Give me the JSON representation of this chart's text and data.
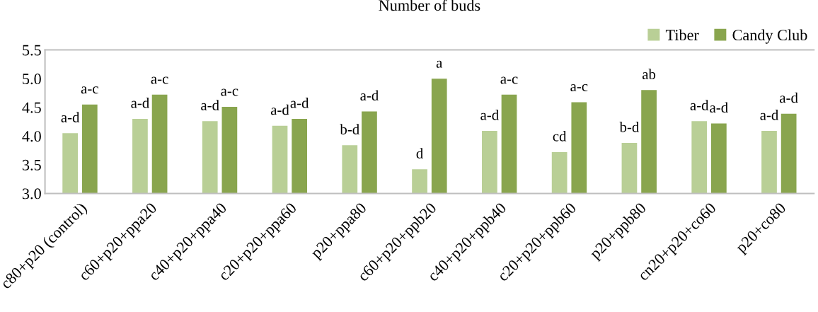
{
  "chart_data": {
    "type": "bar",
    "title": "Number of buds",
    "categories": [
      "c80+p20 (control)",
      "c60+p20+ppa20",
      "c40+p20+ppa40",
      "c20+p20+ppa60",
      "p20+ppa80",
      "c60+p20+ppb20",
      "c40+p20+ppb40",
      "c20+p20+ppb60",
      "p20+ppb80",
      "cn20+p20+co60",
      "p20+co80"
    ],
    "series": [
      {
        "name": "Tiber",
        "color": "#b9cf96",
        "values": [
          4.05,
          4.3,
          4.26,
          4.18,
          3.84,
          3.42,
          4.09,
          3.72,
          3.88,
          4.26,
          4.09
        ],
        "value_labels": [
          "a-d",
          "a-d",
          "a-d",
          "a-d",
          "b-d",
          "d",
          "a-d",
          "cd",
          "b-d",
          "a-d",
          "a-d"
        ]
      },
      {
        "name": "Candy Club",
        "color": "#89a54e",
        "values": [
          4.55,
          4.72,
          4.51,
          4.3,
          4.43,
          5.0,
          4.72,
          4.59,
          4.8,
          4.22,
          4.39
        ],
        "value_labels": [
          "a-c",
          "a-c",
          "a-c",
          "a-d",
          "a-d",
          "a",
          "a-c",
          "a-c",
          "ab",
          "a-d",
          "a-d"
        ]
      }
    ],
    "ylim": [
      3.0,
      5.5
    ],
    "yticks": [
      {
        "value": 3.0,
        "label": "3.0"
      },
      {
        "value": 3.5,
        "label": "3.5"
      },
      {
        "value": 4.0,
        "label": "4.0"
      },
      {
        "value": 4.5,
        "label": "4.5"
      },
      {
        "value": 5.0,
        "label": "5.0"
      },
      {
        "value": 5.5,
        "label": "5.5"
      }
    ],
    "grid": false,
    "legend": "top right"
  }
}
